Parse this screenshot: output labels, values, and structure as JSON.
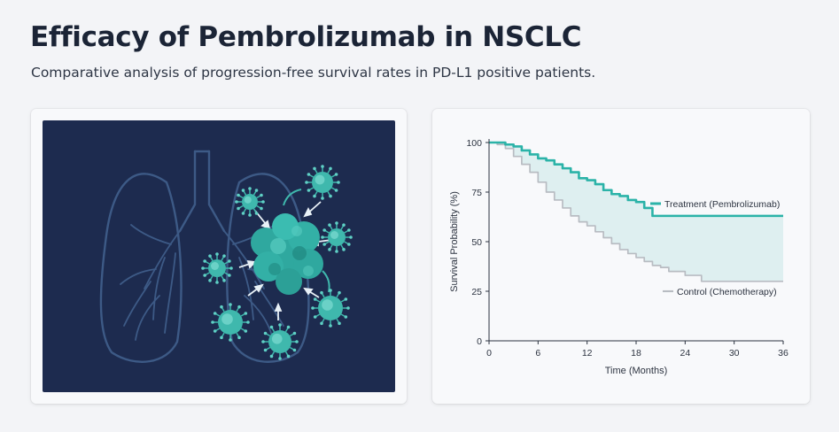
{
  "header": {
    "title": "Efficacy of Pembrolizumab in NSCLC",
    "subtitle": "Comparative analysis of progression-free survival rates in PD-L1 positive patients."
  },
  "illustration": {
    "icons": [
      "lungs-icon",
      "tumor-icon",
      "t-cell-icon"
    ],
    "colors": {
      "background": "#1d2b4f",
      "lungs": "#3d5a86",
      "cells": "#3fb8ad"
    }
  },
  "chart_data": {
    "type": "line",
    "xlabel": "Time (Months)",
    "ylabel": "Survival Probability (%)",
    "xlim": [
      0,
      36
    ],
    "ylim": [
      0,
      100
    ],
    "x_ticks": [
      0,
      6,
      12,
      18,
      24,
      30,
      36
    ],
    "y_ticks": [
      0,
      25,
      50,
      75,
      100
    ],
    "legend_placement": "right",
    "grid": false,
    "fill_between_series": true,
    "series": [
      {
        "name": "Treatment (Pembrolizumab)",
        "color": "#2bb3a8",
        "step": true,
        "points": [
          [
            0,
            100
          ],
          [
            1.5,
            100
          ],
          [
            2,
            99
          ],
          [
            3,
            98
          ],
          [
            4,
            96
          ],
          [
            5,
            94
          ],
          [
            6,
            92
          ],
          [
            7,
            91
          ],
          [
            8,
            89
          ],
          [
            9,
            87
          ],
          [
            10,
            85
          ],
          [
            11,
            82
          ],
          [
            12,
            81
          ],
          [
            13,
            79
          ],
          [
            14,
            76
          ],
          [
            15,
            74
          ],
          [
            16,
            73
          ],
          [
            17,
            71
          ],
          [
            18,
            70
          ],
          [
            19,
            67
          ],
          [
            20,
            63
          ],
          [
            21,
            63
          ],
          [
            22,
            63
          ],
          [
            24,
            63
          ],
          [
            26,
            63
          ],
          [
            28,
            63
          ],
          [
            30,
            63
          ],
          [
            32,
            63
          ],
          [
            34,
            63
          ],
          [
            36,
            63
          ]
        ]
      },
      {
        "name": "Control (Chemotherapy)",
        "color": "#b8bcc2",
        "step": true,
        "points": [
          [
            0,
            100
          ],
          [
            1,
            99
          ],
          [
            2,
            97
          ],
          [
            3,
            93
          ],
          [
            4,
            89
          ],
          [
            5,
            85
          ],
          [
            6,
            80
          ],
          [
            7,
            75
          ],
          [
            8,
            71
          ],
          [
            9,
            67
          ],
          [
            10,
            63
          ],
          [
            11,
            60
          ],
          [
            12,
            58
          ],
          [
            13,
            55
          ],
          [
            14,
            52
          ],
          [
            15,
            49
          ],
          [
            16,
            46
          ],
          [
            17,
            44
          ],
          [
            18,
            42
          ],
          [
            19,
            40
          ],
          [
            20,
            38
          ],
          [
            21,
            37
          ],
          [
            22,
            35
          ],
          [
            24,
            33
          ],
          [
            26,
            30
          ],
          [
            28,
            30
          ],
          [
            30,
            30
          ],
          [
            32,
            30
          ],
          [
            34,
            30
          ],
          [
            36,
            30
          ]
        ]
      }
    ]
  }
}
